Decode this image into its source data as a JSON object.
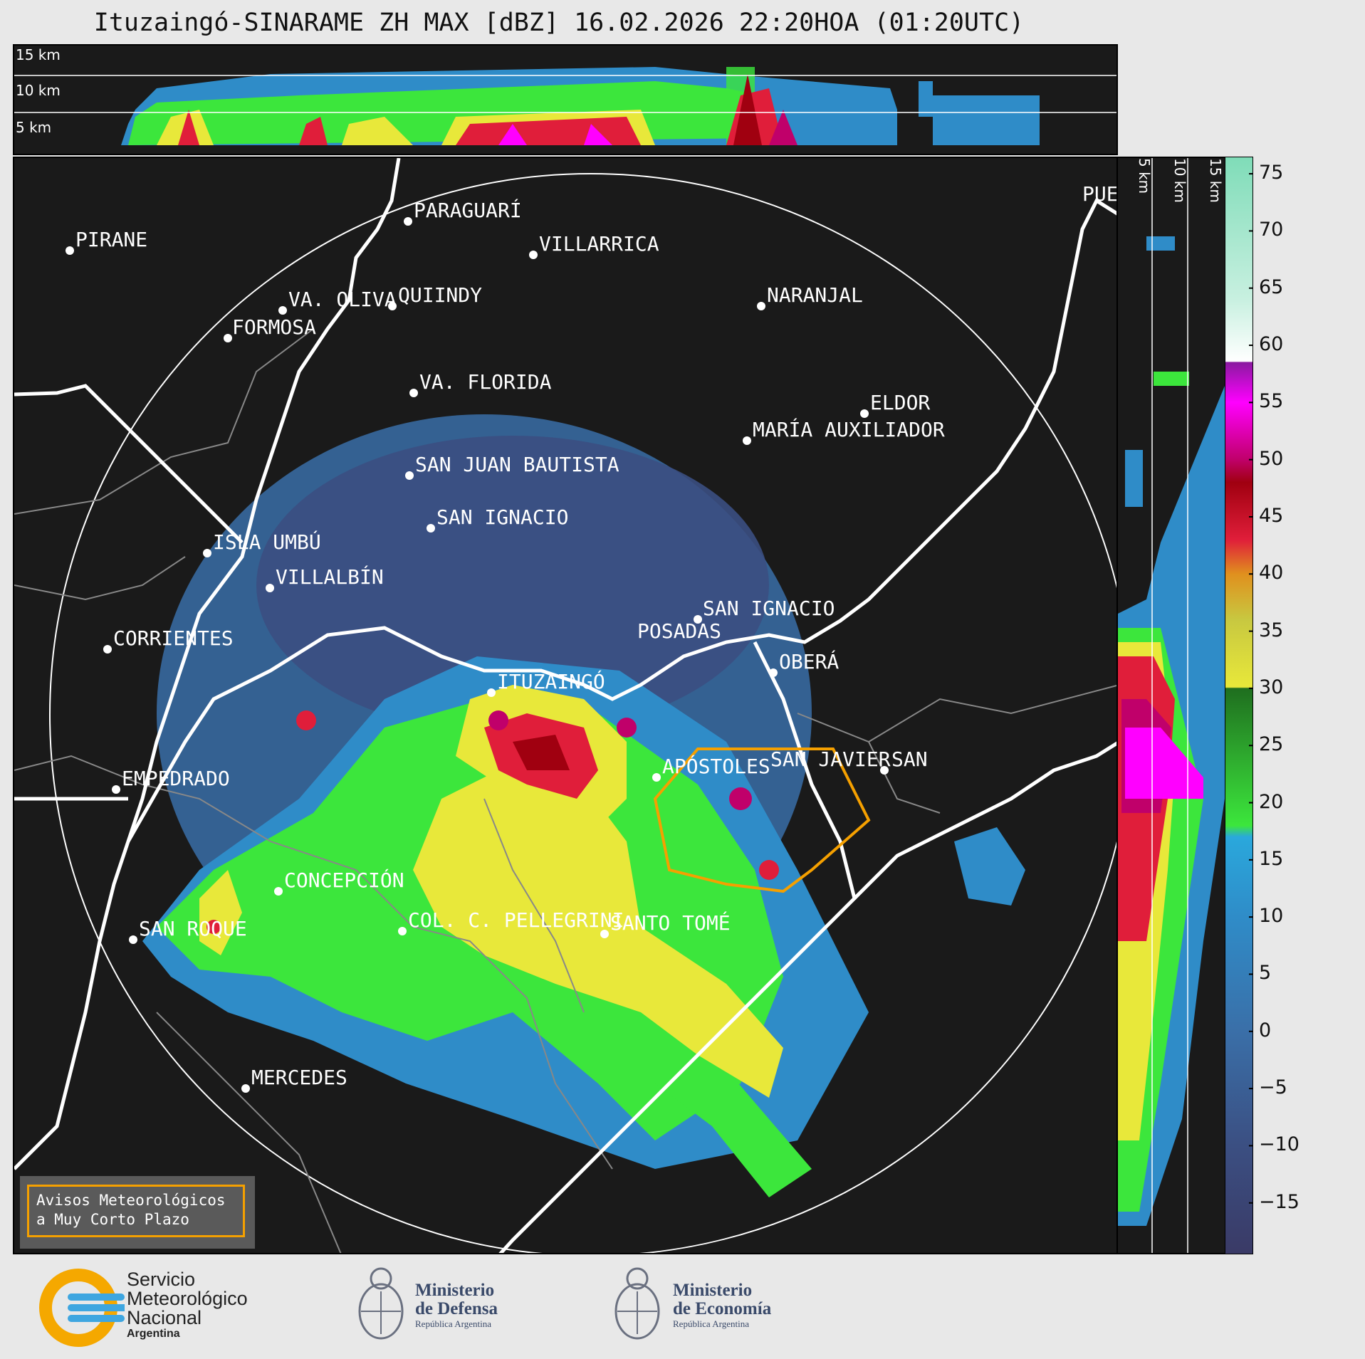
{
  "title": "Ituzaingó-SINARAME ZH MAX [dBZ] 16.02.2026 22:20HOA (01:20UTC)",
  "altitude_labels_top": [
    "15 km",
    "10 km",
    "5 km"
  ],
  "altitude_labels_side": [
    "5 km",
    "10 km",
    "15 km"
  ],
  "cities": [
    {
      "name": "PIRANE"
    },
    {
      "name": "PARAGUARÍ"
    },
    {
      "name": "VILLARRICA"
    },
    {
      "name": "QUIINDY"
    },
    {
      "name": "VA. OLIVA"
    },
    {
      "name": "NARANJAL"
    },
    {
      "name": "FORMOSA"
    },
    {
      "name": "VA. FLORIDA"
    },
    {
      "name": "ELDOR"
    },
    {
      "name": "MARÍA AUXILIADOR"
    },
    {
      "name": "SAN JUAN BAUTISTA"
    },
    {
      "name": "SAN IGNACIO"
    },
    {
      "name": "ISLA UMBÚ"
    },
    {
      "name": "VILLALBÍN"
    },
    {
      "name": "SAN IGNACIO"
    },
    {
      "name": "POSADAS"
    },
    {
      "name": "CORRIENTES"
    },
    {
      "name": "ITUZAINGÓ"
    },
    {
      "name": "OBERÁ"
    },
    {
      "name": "EMPEDRADO"
    },
    {
      "name": "APÓSTOLES"
    },
    {
      "name": "SAN JAVIER"
    },
    {
      "name": "SAN"
    },
    {
      "name": "CONCEPCIÓN"
    },
    {
      "name": "COL. C. PELLEGRINI"
    },
    {
      "name": "SANTO TOMÉ"
    },
    {
      "name": "SAN ROQUE"
    },
    {
      "name": "MERCEDES"
    },
    {
      "name": "PUE"
    }
  ],
  "colorbar": {
    "unit": "dBZ",
    "ticks": [
      "75",
      "70",
      "65",
      "60",
      "55",
      "50",
      "45",
      "40",
      "35",
      "30",
      "25",
      "20",
      "15",
      "10",
      "5",
      "0",
      "−5",
      "−10",
      "−15"
    ],
    "range": [
      -19.5,
      76.5
    ],
    "stops": [
      {
        "v": -19.5,
        "c": "#3a3a66"
      },
      {
        "v": -10,
        "c": "#3b4f82"
      },
      {
        "v": 0,
        "c": "#3a6fa8"
      },
      {
        "v": 10,
        "c": "#2f8cc8"
      },
      {
        "v": 17,
        "c": "#2aa8dc"
      },
      {
        "v": 18,
        "c": "#3ce63c"
      },
      {
        "v": 24,
        "c": "#2eaa2e"
      },
      {
        "v": 30,
        "c": "#1f6e1f"
      },
      {
        "v": 30.1,
        "c": "#e8e83a"
      },
      {
        "v": 36,
        "c": "#c8c840"
      },
      {
        "v": 40,
        "c": "#e0901e"
      },
      {
        "v": 43,
        "c": "#e01e3a"
      },
      {
        "v": 48,
        "c": "#a00010"
      },
      {
        "v": 50,
        "c": "#c0006a"
      },
      {
        "v": 55,
        "c": "#ff00ff"
      },
      {
        "v": 58.5,
        "c": "#8a1aa0"
      },
      {
        "v": 58.6,
        "c": "#ffffff"
      },
      {
        "v": 64,
        "c": "#c8f0e0"
      },
      {
        "v": 76.5,
        "c": "#7fdcb8"
      }
    ]
  },
  "aviso": {
    "line1": "Avisos Meteorológicos",
    "line2": "a Muy Corto Plazo"
  },
  "footer": {
    "smn": {
      "line1": "Servicio",
      "line2": "Meteorológico",
      "line3": "Nacional",
      "line4": "Argentina"
    },
    "defensa": {
      "line1": "Ministerio",
      "line2": "de Defensa",
      "line3": "República Argentina"
    },
    "economia": {
      "line1": "Ministerio",
      "line2": "de Economía",
      "line3": "República Argentina"
    }
  },
  "colors": {
    "background": "#1a1a1a",
    "border": "#ffffff",
    "alert": "#f5a000"
  }
}
